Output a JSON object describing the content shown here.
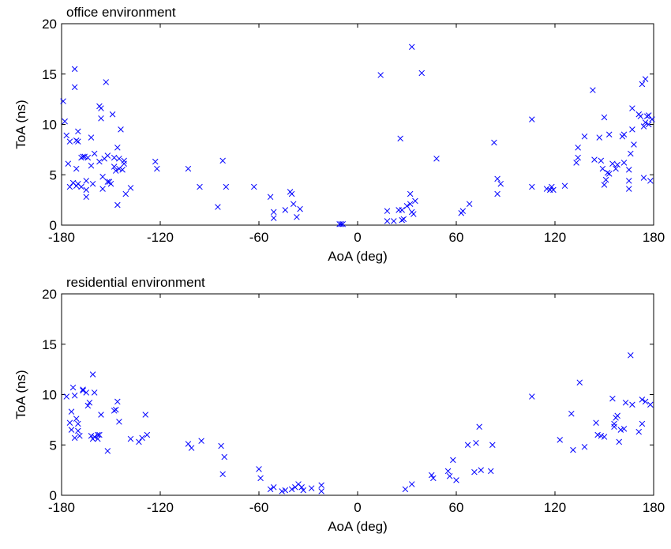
{
  "chart_data": [
    {
      "type": "scatter",
      "title": "office environment",
      "xlabel": "AoA (deg)",
      "ylabel": "ToA (ns)",
      "xlim": [
        -180,
        180
      ],
      "ylim": [
        0,
        20
      ],
      "xticks": [
        -180,
        -120,
        -60,
        0,
        60,
        120,
        180
      ],
      "yticks": [
        0,
        5,
        10,
        15,
        20
      ],
      "grid": false,
      "marker": "x",
      "color": "#0000FF",
      "series": [
        {
          "points": [
            [
              -179,
              12.3
            ],
            [
              -178,
              10.3
            ],
            [
              -177,
              8.9
            ],
            [
              -176,
              6.1
            ],
            [
              -175,
              8.3
            ],
            [
              -175,
              3.8
            ],
            [
              -173,
              4.2
            ],
            [
              -172,
              15.5
            ],
            [
              -172,
              13.7
            ],
            [
              -171,
              8.4
            ],
            [
              -171,
              5.6
            ],
            [
              -171,
              3.9
            ],
            [
              -170,
              8.3
            ],
            [
              -170,
              9.3
            ],
            [
              -170,
              4.1
            ],
            [
              -168,
              6.7
            ],
            [
              -168,
              3.8
            ],
            [
              -167,
              6.8
            ],
            [
              -166,
              6.8
            ],
            [
              -165,
              4.4
            ],
            [
              -165,
              3.5
            ],
            [
              -165,
              2.8
            ],
            [
              -164,
              6.7
            ],
            [
              -162,
              8.7
            ],
            [
              -162,
              5.9
            ],
            [
              -161,
              4.1
            ],
            [
              -160,
              7.1
            ],
            [
              -157,
              11.8
            ],
            [
              -157,
              6.3
            ],
            [
              -156,
              11.6
            ],
            [
              -156,
              10.6
            ],
            [
              -155,
              4.8
            ],
            [
              -155,
              3.6
            ],
            [
              -154,
              6.6
            ],
            [
              -153,
              14.2
            ],
            [
              -152,
              4.3
            ],
            [
              -152,
              6.9
            ],
            [
              -151,
              4.3
            ],
            [
              -150,
              4.1
            ],
            [
              -149,
              11.0
            ],
            [
              -148,
              6.7
            ],
            [
              -148,
              5.8
            ],
            [
              -147,
              5.4
            ],
            [
              -146,
              7.7
            ],
            [
              -146,
              2.0
            ],
            [
              -145,
              6.6
            ],
            [
              -145,
              5.6
            ],
            [
              -144,
              9.5
            ],
            [
              -143,
              5.5
            ],
            [
              -142,
              6.4
            ],
            [
              -142,
              6.1
            ],
            [
              -141,
              3.1
            ],
            [
              -138,
              3.7
            ],
            [
              -123,
              6.3
            ],
            [
              -122,
              5.6
            ],
            [
              -103,
              5.6
            ],
            [
              -96,
              3.8
            ],
            [
              -85,
              1.8
            ],
            [
              -82,
              6.4
            ],
            [
              -80,
              3.8
            ],
            [
              -63,
              3.8
            ],
            [
              -53,
              2.8
            ],
            [
              -51,
              1.3
            ],
            [
              -51,
              0.7
            ],
            [
              -44,
              1.5
            ],
            [
              -41,
              3.3
            ],
            [
              -40,
              3.1
            ],
            [
              -39,
              2.1
            ],
            [
              -37,
              0.8
            ],
            [
              -35,
              1.6
            ],
            [
              -11,
              0.1
            ],
            [
              -10,
              0.1
            ],
            [
              -9,
              0.1
            ],
            [
              14,
              14.9
            ],
            [
              18,
              0.4
            ],
            [
              18,
              1.4
            ],
            [
              22,
              0.4
            ],
            [
              25,
              1.5
            ],
            [
              26,
              8.6
            ],
            [
              27,
              1.5
            ],
            [
              27,
              0.5
            ],
            [
              28,
              0.6
            ],
            [
              30,
              1.9
            ],
            [
              32,
              3.1
            ],
            [
              32,
              2.1
            ],
            [
              33,
              17.7
            ],
            [
              33,
              1.3
            ],
            [
              34,
              1.1
            ],
            [
              35,
              2.4
            ],
            [
              39,
              15.1
            ],
            [
              48,
              6.6
            ],
            [
              63,
              1.2
            ],
            [
              64,
              1.4
            ],
            [
              68,
              2.1
            ],
            [
              83,
              8.2
            ],
            [
              85,
              4.6
            ],
            [
              85,
              3.1
            ],
            [
              87,
              4.1
            ],
            [
              106,
              10.5
            ],
            [
              106,
              3.8
            ],
            [
              115,
              3.6
            ],
            [
              117,
              3.5
            ],
            [
              118,
              3.8
            ],
            [
              119,
              3.5
            ],
            [
              126,
              3.9
            ],
            [
              133,
              6.2
            ],
            [
              134,
              7.7
            ],
            [
              134,
              6.7
            ],
            [
              138,
              8.8
            ],
            [
              143,
              13.4
            ],
            [
              144,
              6.5
            ],
            [
              147,
              8.7
            ],
            [
              148,
              6.4
            ],
            [
              149,
              5.6
            ],
            [
              150,
              10.7
            ],
            [
              150,
              4.0
            ],
            [
              151,
              4.5
            ],
            [
              152,
              5.2
            ],
            [
              153,
              5.1
            ],
            [
              153,
              9.0
            ],
            [
              155,
              6.1
            ],
            [
              157,
              5.6
            ],
            [
              158,
              6.0
            ],
            [
              161,
              8.8
            ],
            [
              162,
              9.0
            ],
            [
              162,
              6.2
            ],
            [
              165,
              5.5
            ],
            [
              165,
              4.4
            ],
            [
              165,
              3.6
            ],
            [
              166,
              7.1
            ],
            [
              167,
              11.6
            ],
            [
              167,
              9.5
            ],
            [
              168,
              8.0
            ],
            [
              171,
              11.0
            ],
            [
              172,
              10.8
            ],
            [
              173,
              14.0
            ],
            [
              174,
              9.8
            ],
            [
              174,
              4.7
            ],
            [
              175,
              14.5
            ],
            [
              175,
              10.2
            ],
            [
              176,
              10.8
            ],
            [
              177,
              10.9
            ],
            [
              177,
              10.0
            ],
            [
              178,
              4.4
            ],
            [
              179,
              10.5
            ]
          ]
        }
      ]
    },
    {
      "type": "scatter",
      "title": "residential environment",
      "xlabel": "AoA (deg)",
      "ylabel": "ToA (ns)",
      "xlim": [
        -180,
        180
      ],
      "ylim": [
        0,
        20
      ],
      "xticks": [
        -180,
        -120,
        -60,
        0,
        60,
        120,
        180
      ],
      "yticks": [
        0,
        5,
        10,
        15,
        20
      ],
      "grid": false,
      "marker": "x",
      "color": "#0000FF",
      "series": [
        {
          "points": [
            [
              -177,
              9.8
            ],
            [
              -175,
              7.2
            ],
            [
              -174,
              6.5
            ],
            [
              -174,
              8.3
            ],
            [
              -173,
              10.7
            ],
            [
              -172,
              9.9
            ],
            [
              -172,
              5.7
            ],
            [
              -171,
              7.6
            ],
            [
              -170,
              7.1
            ],
            [
              -170,
              6.4
            ],
            [
              -169,
              5.9
            ],
            [
              -167,
              10.4
            ],
            [
              -167,
              10.5
            ],
            [
              -165,
              10.2
            ],
            [
              -164,
              8.9
            ],
            [
              -163,
              9.2
            ],
            [
              -162,
              5.9
            ],
            [
              -161,
              12.0
            ],
            [
              -161,
              5.6
            ],
            [
              -160,
              10.2
            ],
            [
              -160,
              5.8
            ],
            [
              -158,
              5.6
            ],
            [
              -158,
              6.0
            ],
            [
              -157,
              6.0
            ],
            [
              -156,
              8.0
            ],
            [
              -152,
              4.4
            ],
            [
              -148,
              8.4
            ],
            [
              -147,
              8.5
            ],
            [
              -146,
              9.3
            ],
            [
              -145,
              7.3
            ],
            [
              -138,
              5.6
            ],
            [
              -133,
              5.3
            ],
            [
              -131,
              5.7
            ],
            [
              -129,
              8.0
            ],
            [
              -128,
              6.0
            ],
            [
              -103,
              5.1
            ],
            [
              -101,
              4.7
            ],
            [
              -95,
              5.4
            ],
            [
              -83,
              4.9
            ],
            [
              -82,
              2.1
            ],
            [
              -81,
              3.8
            ],
            [
              -60,
              2.6
            ],
            [
              -59,
              1.7
            ],
            [
              -53,
              0.6
            ],
            [
              -51,
              0.8
            ],
            [
              -46,
              0.4
            ],
            [
              -44,
              0.5
            ],
            [
              -40,
              0.6
            ],
            [
              -38,
              0.8
            ],
            [
              -36,
              1.1
            ],
            [
              -34,
              0.8
            ],
            [
              -33,
              0.5
            ],
            [
              -28,
              0.7
            ],
            [
              -22,
              1.0
            ],
            [
              -22,
              0.4
            ],
            [
              29,
              0.6
            ],
            [
              33,
              1.1
            ],
            [
              45,
              2.0
            ],
            [
              46,
              1.7
            ],
            [
              55,
              2.4
            ],
            [
              56,
              1.9
            ],
            [
              58,
              3.5
            ],
            [
              60,
              1.5
            ],
            [
              67,
              5.0
            ],
            [
              71,
              2.3
            ],
            [
              72,
              5.2
            ],
            [
              74,
              6.8
            ],
            [
              75,
              2.5
            ],
            [
              81,
              2.4
            ],
            [
              82,
              5.0
            ],
            [
              106,
              9.8
            ],
            [
              123,
              5.5
            ],
            [
              130,
              8.1
            ],
            [
              131,
              4.5
            ],
            [
              135,
              11.2
            ],
            [
              138,
              4.8
            ],
            [
              145,
              7.2
            ],
            [
              146,
              6.0
            ],
            [
              148,
              5.9
            ],
            [
              150,
              5.8
            ],
            [
              155,
              9.6
            ],
            [
              156,
              6.8
            ],
            [
              156,
              7.1
            ],
            [
              157,
              7.7
            ],
            [
              158,
              7.9
            ],
            [
              159,
              5.3
            ],
            [
              160,
              6.5
            ],
            [
              162,
              6.6
            ],
            [
              163,
              9.2
            ],
            [
              166,
              13.9
            ],
            [
              167,
              9.0
            ],
            [
              171,
              6.3
            ],
            [
              173,
              9.5
            ],
            [
              173,
              7.1
            ],
            [
              175,
              9.3
            ],
            [
              178,
              9.0
            ]
          ]
        }
      ]
    }
  ]
}
